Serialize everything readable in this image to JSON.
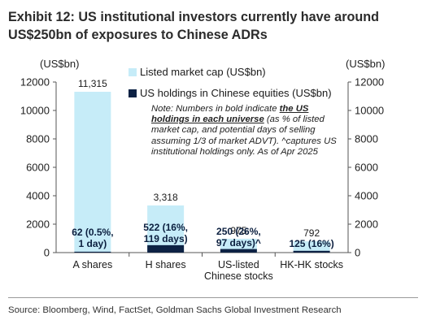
{
  "title": "Exhibit 12: US institutional investors currently have around US$250bn of exposures to Chinese ADRs",
  "source": "Source: Bloomberg, Wind, FactSet, Goldman Sachs Global Investment Research",
  "note": {
    "prefix": "Note: Numbers in bold indicate ",
    "bold": "the US holdings in each universe",
    "suffix": " (as % of listed market cap, and potential days of selling assuming 1/3 of market ADVT). ^captures US institutional holdings only. As of Apr 2025"
  },
  "colors": {
    "market_cap": "#c6ecf8",
    "us_holdings": "#0d2244",
    "axis": "#555555"
  },
  "chart_data": {
    "type": "bar",
    "title": "Exhibit 12: US institutional investors currently have around US$250bn of exposures to Chinese ADRs",
    "ylabel_left": "(US$bn)",
    "ylabel_right": "(US$bn)",
    "ylim": [
      0,
      12000
    ],
    "yticks": [
      0,
      2000,
      4000,
      6000,
      8000,
      10000,
      12000
    ],
    "categories": [
      "A shares",
      "H shares",
      "US-listed Chinese stocks",
      "HK-HK stocks"
    ],
    "category_labels": [
      [
        "A shares"
      ],
      [
        "H shares"
      ],
      [
        "US-listed",
        "Chinese stocks"
      ],
      [
        "HK-HK stocks"
      ]
    ],
    "series": [
      {
        "name": "Listed market cap (US$bn)",
        "values": [
          11315,
          3318,
          975,
          792
        ],
        "labels": [
          "11,315",
          "3,318",
          "975",
          "792"
        ]
      },
      {
        "name": "US holdings in Chinese equities (US$bn)",
        "values": [
          62,
          522,
          250,
          125
        ],
        "labels": [
          [
            "62 (0.5%,",
            "1 day)"
          ],
          [
            "522 (16%,",
            "119 days)"
          ],
          [
            "250 (26%,",
            "97 days)^"
          ],
          [
            "125 (16%)"
          ]
        ]
      }
    ],
    "legend": "top-center",
    "grid": false
  }
}
